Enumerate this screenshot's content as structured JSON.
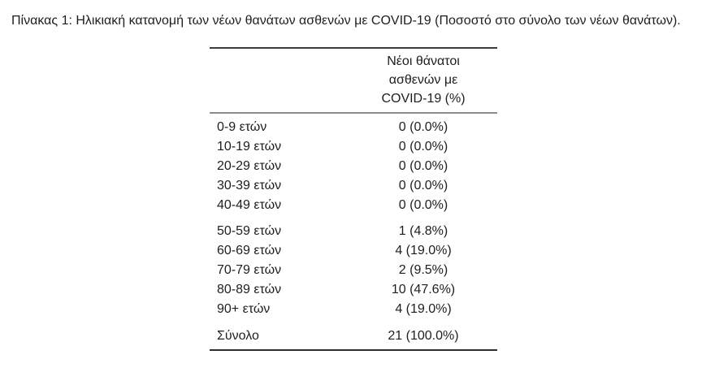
{
  "title": "Πίνακας 1: Ηλικιακή κατανομή των νέων θανάτων ασθενών με COVID-19 (Ποσοστό στο σύνολο των νέων θανάτων).",
  "table": {
    "header_lines": [
      "Νέοι θάνατοι",
      "ασθενών με",
      "COVID-19 (%)"
    ],
    "groups": [
      {
        "rows": [
          {
            "label": "0-9 ετών",
            "value": "0 (0.0%)"
          },
          {
            "label": "10-19 ετών",
            "value": "0 (0.0%)"
          },
          {
            "label": "20-29 ετών",
            "value": "0 (0.0%)"
          },
          {
            "label": "30-39 ετών",
            "value": "0 (0.0%)"
          },
          {
            "label": "40-49 ετών",
            "value": "0 (0.0%)"
          }
        ]
      },
      {
        "rows": [
          {
            "label": "50-59 ετών",
            "value": "1 (4.8%)"
          },
          {
            "label": "60-69 ετών",
            "value": "4 (19.0%)"
          },
          {
            "label": "70-79 ετών",
            "value": "2 (9.5%)"
          },
          {
            "label": "80-89 ετών",
            "value": "10 (47.6%)"
          },
          {
            "label": "90+ ετών",
            "value": "4 (19.0%)"
          }
        ]
      }
    ],
    "total": {
      "label": "Σύνολο",
      "value": "21 (100.0%)"
    }
  },
  "chart_data": {
    "type": "table",
    "title": "Πίνακας 1: Ηλικιακή κατανομή των νέων θανάτων ασθενών με COVID-19 (Ποσοστό στο σύνολο των νέων θανάτων).",
    "value_column_header": "Νέοι θάνατοι ασθενών με COVID-19 (%)",
    "categories": [
      "0-9 ετών",
      "10-19 ετών",
      "20-29 ετών",
      "30-39 ετών",
      "40-49 ετών",
      "50-59 ετών",
      "60-69 ετών",
      "70-79 ετών",
      "80-89 ετών",
      "90+ ετών"
    ],
    "deaths": [
      0,
      0,
      0,
      0,
      0,
      1,
      4,
      2,
      10,
      4
    ],
    "percentages": [
      0.0,
      0.0,
      0.0,
      0.0,
      0.0,
      4.8,
      19.0,
      9.5,
      47.6,
      19.0
    ],
    "total_label": "Σύνολο",
    "total_deaths": 21,
    "total_percentage": 100.0
  },
  "colors": {
    "background": "#ffffff",
    "text": "#1e1e1e",
    "rule_top": "#3c3c3c",
    "rule_mid": "#8c8c8c",
    "rule_bottom": "#2e2e2e"
  }
}
